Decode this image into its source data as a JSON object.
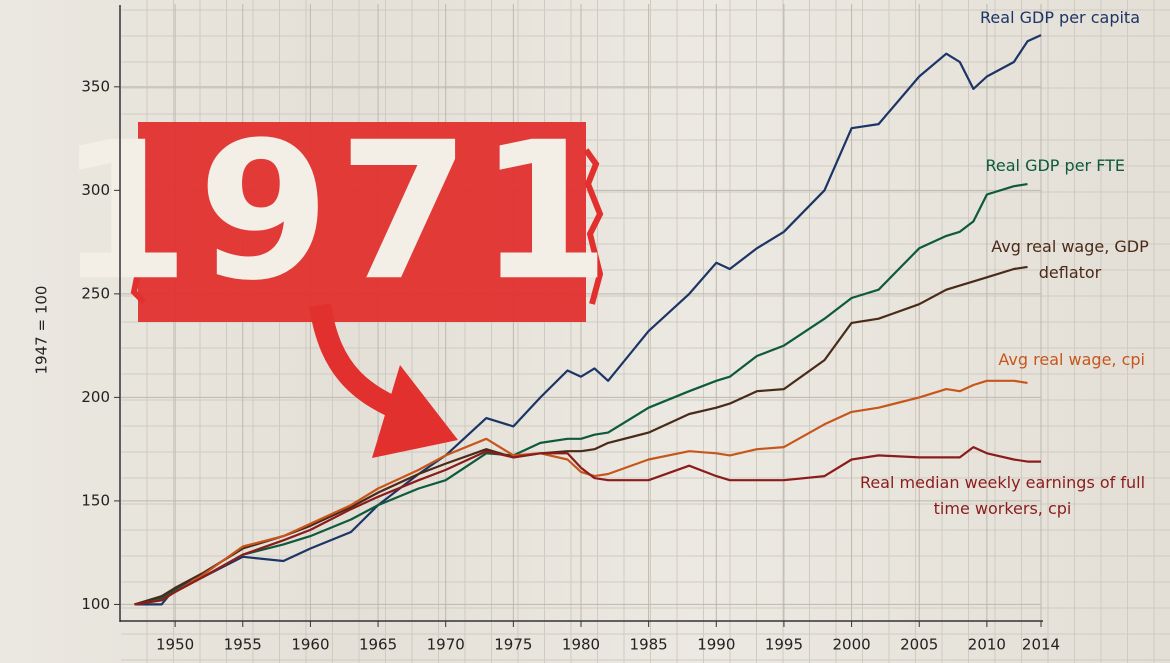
{
  "chart_data": {
    "type": "line",
    "annotation": "1971",
    "y_label": "1947 = 100",
    "x": [
      1947,
      1949,
      1950,
      1952,
      1955,
      1958,
      1960,
      1963,
      1965,
      1968,
      1970,
      1973,
      1975,
      1977,
      1979,
      1980,
      1981,
      1982,
      1985,
      1988,
      1990,
      1991,
      1993,
      1995,
      1998,
      2000,
      2002,
      2005,
      2007,
      2008,
      2009,
      2010,
      2012,
      2013,
      2014
    ],
    "series": [
      {
        "name": "Real GDP per capita",
        "color": "#1d3566",
        "values": [
          100,
          100,
          108,
          113,
          123,
          121,
          127,
          135,
          148,
          163,
          172,
          190,
          186,
          200,
          213,
          210,
          214,
          208,
          232,
          250,
          265,
          262,
          272,
          280,
          300,
          330,
          332,
          355,
          366,
          362,
          349,
          355,
          362,
          372,
          375
        ]
      },
      {
        "name": "Real GDP per FTE",
        "color": "#0d5a3c",
        "values": [
          100,
          103,
          107,
          113,
          124,
          129,
          133,
          141,
          148,
          156,
          160,
          173,
          172,
          178,
          180,
          180,
          182,
          183,
          195,
          203,
          208,
          210,
          220,
          225,
          238,
          248,
          252,
          272,
          278,
          280,
          285,
          298,
          302,
          303,
          null
        ]
      },
      {
        "name": "Avg real wage, GDP deflator",
        "color": "#4a2a18",
        "values": [
          100,
          104,
          108,
          115,
          127,
          133,
          138,
          147,
          154,
          163,
          168,
          175,
          171,
          173,
          174,
          174,
          175,
          178,
          183,
          192,
          195,
          197,
          203,
          204,
          218,
          236,
          238,
          245,
          252,
          254,
          256,
          258,
          262,
          263,
          null
        ]
      },
      {
        "name": "Avg real wage, cpi",
        "color": "#c7561c",
        "values": [
          100,
          102,
          106,
          114,
          128,
          133,
          139,
          148,
          156,
          165,
          172,
          180,
          172,
          173,
          170,
          164,
          162,
          163,
          170,
          174,
          173,
          172,
          175,
          176,
          187,
          193,
          195,
          200,
          204,
          203,
          206,
          208,
          208,
          207,
          null
        ]
      },
      {
        "name": "Real median weekly earnings of full time workers, cpi",
        "color": "#8c1c1c",
        "values": [
          100,
          102,
          106,
          113,
          124,
          131,
          136,
          146,
          152,
          160,
          165,
          174,
          171,
          173,
          173,
          166,
          161,
          160,
          160,
          167,
          162,
          160,
          160,
          160,
          162,
          170,
          172,
          171,
          171,
          171,
          176,
          173,
          170,
          169,
          169
        ]
      }
    ],
    "xlim": [
      1946,
      2014
    ],
    "ylim": [
      92,
      390
    ],
    "xticks": [
      1950,
      1955,
      1960,
      1965,
      1970,
      1975,
      1980,
      1985,
      1990,
      1995,
      2000,
      2005,
      2010,
      2014
    ],
    "yticks": [
      100,
      150,
      200,
      250,
      300,
      350
    ],
    "grid": true
  }
}
